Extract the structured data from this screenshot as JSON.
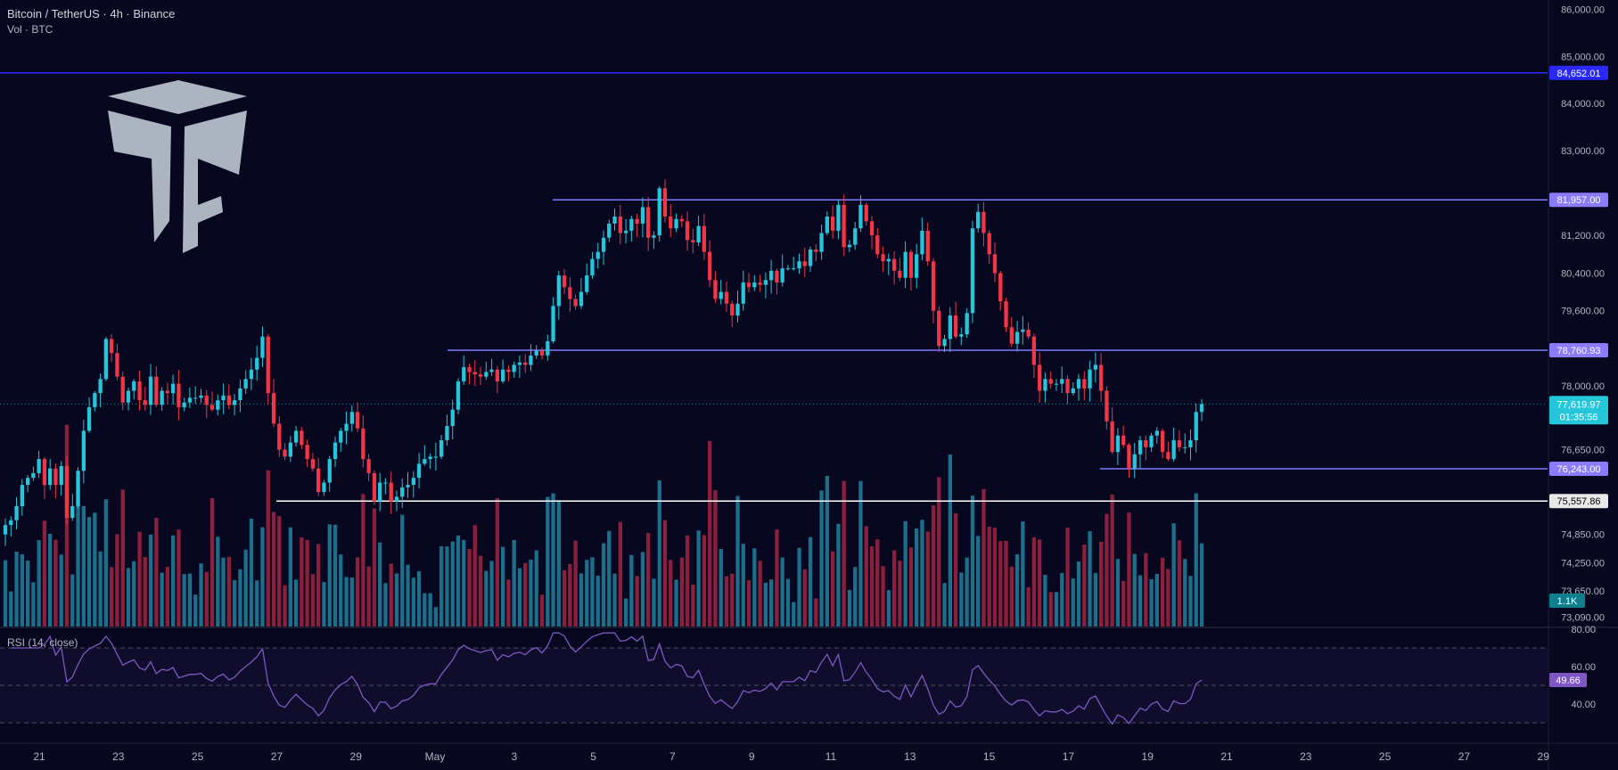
{
  "header": {
    "title": "Bitcoin / TetherUS · 4h · Binance",
    "volume_label": "Vol · BTC"
  },
  "colors": {
    "background": "#070720",
    "up": "#26c6da",
    "down": "#f23645",
    "vol_up": "#1b6f8a",
    "vol_down": "#8c1f3c",
    "level_line": "#7b7bff",
    "top_line": "#2929ff",
    "support_line": "#ffffff",
    "rsi_line": "#7e57c2"
  },
  "chart_data": [
    {
      "type": "candlestick",
      "title": "Bitcoin / TetherUS · 4h · Binance",
      "timeframe": "4h",
      "x_tick_labels": [
        "21",
        "23",
        "25",
        "27",
        "29",
        "May",
        "3",
        "5",
        "7",
        "9",
        "11",
        "13",
        "15",
        "17",
        "19",
        "21",
        "23",
        "25",
        "27",
        "29"
      ],
      "y_tick_labels": [
        "86,000.00",
        "85,000.00",
        "84,000.00",
        "83,000.00",
        "81,200.00",
        "80,400.00",
        "79,600.00",
        "78,000.00",
        "76,650.00",
        "74,850.00",
        "74,250.00",
        "73,650.00",
        "73,090.00"
      ],
      "ylim": [
        72950,
        86200
      ],
      "last_price": 77619.97,
      "last_price_label": "77,619.97",
      "countdown": "01:35:56",
      "horizontal_levels": [
        {
          "label": "84,652.01",
          "value": 84652.01,
          "kind": "top"
        },
        {
          "label": "81,957.00",
          "value": 81957.0,
          "kind": "level"
        },
        {
          "label": "78,760.93",
          "value": 78760.93,
          "kind": "level"
        },
        {
          "label": "76,243.00",
          "value": 76243.0,
          "kind": "level"
        },
        {
          "label": "75,557.86",
          "value": 75557.86,
          "kind": "support"
        }
      ],
      "close_series": [
        75050,
        75150,
        75450,
        75900,
        76050,
        76150,
        76450,
        75900,
        76250,
        75900,
        76300,
        75200,
        75450,
        76200,
        77050,
        77550,
        77850,
        78150,
        79000,
        78700,
        78200,
        77650,
        77900,
        78100,
        77700,
        77600,
        78200,
        77600,
        77900,
        77850,
        78050,
        77550,
        77650,
        77750,
        77750,
        77800,
        77600,
        77500,
        77700,
        77800,
        77600,
        77700,
        77950,
        78150,
        78350,
        78600,
        79050,
        77850,
        77200,
        76650,
        76500,
        76800,
        77050,
        76750,
        76450,
        76250,
        75750,
        75950,
        76450,
        76800,
        77050,
        77200,
        77450,
        77100,
        76450,
        76150,
        75550,
        75950,
        75950,
        75550,
        75650,
        75850,
        75900,
        76050,
        76350,
        76450,
        76500,
        76500,
        76850,
        77150,
        77500,
        78100,
        78400,
        78300,
        78250,
        78200,
        78300,
        78350,
        78100,
        78350,
        78300,
        78450,
        78500,
        78450,
        78650,
        78750,
        78650,
        78950,
        79700,
        80350,
        80100,
        79850,
        79700,
        80000,
        80350,
        80700,
        80850,
        81150,
        81450,
        81600,
        81250,
        81300,
        81550,
        81450,
        81800,
        81150,
        81200,
        82200,
        81600,
        81350,
        81550,
        81500,
        81100,
        81050,
        81400,
        80850,
        80250,
        79850,
        80000,
        79750,
        79500,
        79750,
        80200,
        80100,
        80200,
        80150,
        80250,
        80450,
        80200,
        80500,
        80500,
        80500,
        80650,
        80550,
        80900,
        80850,
        81250,
        81600,
        81300,
        81850,
        80950,
        81000,
        81350,
        81850,
        81500,
        81200,
        80800,
        80650,
        80700,
        80450,
        80300,
        80850,
        80300,
        80800,
        81300,
        80650,
        79600,
        78850,
        79000,
        79500,
        79050,
        79100,
        79550,
        81350,
        81700,
        81250,
        80800,
        80400,
        79800,
        79250,
        78900,
        79150,
        79200,
        79050,
        78450,
        77900,
        78150,
        78050,
        78050,
        78150,
        77850,
        77950,
        78150,
        77950,
        78350,
        78450,
        77900,
        77250,
        76600,
        76950,
        76750,
        76250,
        76550,
        76850,
        76700,
        76950,
        77050,
        76600,
        76450,
        76850,
        76700,
        76700,
        76850,
        77450,
        77620
      ],
      "volume_scale_label": "1.1K",
      "indicators": [
        {
          "name": "RSI (14, close)",
          "last_value_label": "49.66",
          "y_tick_labels": [
            "80.00",
            "60.00",
            "40.00"
          ],
          "ylim": [
            20,
            80
          ],
          "bands": [
            70,
            50,
            30
          ]
        }
      ]
    }
  ]
}
